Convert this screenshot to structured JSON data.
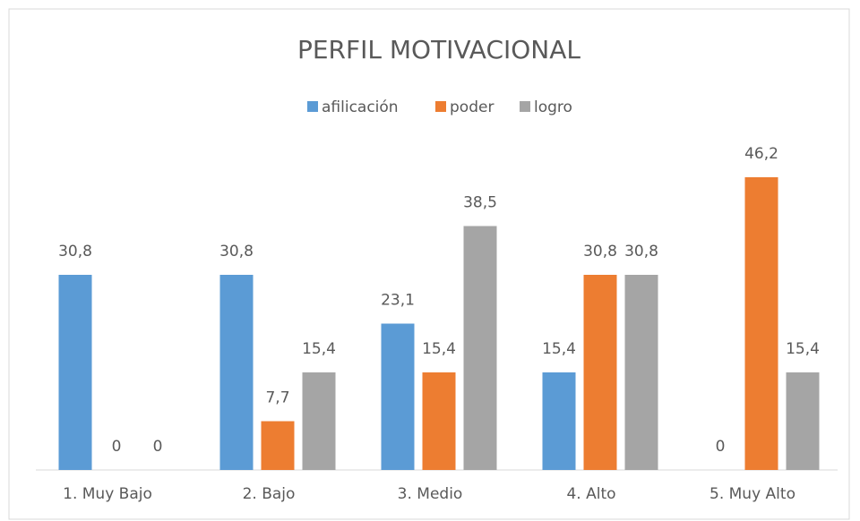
{
  "chart_data": {
    "type": "bar",
    "title": "PERFIL MOTIVACIONAL",
    "categories": [
      "1. Muy Bajo",
      "2. Bajo",
      "3. Medio",
      "4. Alto",
      "5. Muy Alto"
    ],
    "series": [
      {
        "name": "afilicación",
        "color": "#5b9bd5",
        "values": [
          30.8,
          30.8,
          23.1,
          15.4,
          0
        ],
        "value_labels": [
          "30,8",
          "30,8",
          "23,1",
          "15,4",
          "0"
        ]
      },
      {
        "name": "poder",
        "color": "#ed7d31",
        "values": [
          0,
          7.7,
          15.4,
          30.8,
          46.2
        ],
        "value_labels": [
          "0",
          "7,7",
          "15,4",
          "30,8",
          "46,2"
        ]
      },
      {
        "name": "logro",
        "color": "#a5a5a5",
        "values": [
          0,
          15.4,
          38.5,
          30.8,
          15.4
        ],
        "value_labels": [
          "0",
          "15,4",
          "38,5",
          "30,8",
          "15,4"
        ]
      }
    ],
    "legend": "top"
  }
}
